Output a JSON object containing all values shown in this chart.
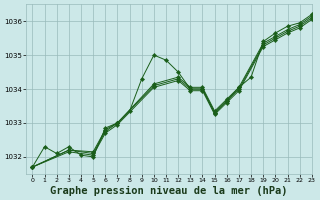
{
  "background_color": "#cce8e8",
  "grid_color": "#99bbbb",
  "line_color": "#1a5e1a",
  "marker_color": "#1a5e1a",
  "xlabel": "Graphe pression niveau de la mer (hPa)",
  "xlabel_fontsize": 7.5,
  "ylim": [
    1031.5,
    1036.5
  ],
  "xlim": [
    -0.5,
    23
  ],
  "yticks": [
    1032,
    1033,
    1034,
    1035,
    1036
  ],
  "xticks": [
    0,
    1,
    2,
    3,
    4,
    5,
    6,
    7,
    8,
    9,
    10,
    11,
    12,
    13,
    14,
    15,
    16,
    17,
    18,
    19,
    20,
    21,
    22,
    23
  ],
  "series": [
    {
      "x": [
        0,
        1,
        2,
        3,
        4,
        5,
        6,
        7,
        8,
        9,
        10,
        11,
        12,
        13,
        14,
        15,
        16,
        17,
        18,
        19,
        20,
        21,
        22,
        23
      ],
      "y": [
        1031.7,
        1032.3,
        1032.1,
        1032.3,
        1032.05,
        1032.0,
        1032.85,
        1033.0,
        1033.35,
        1034.3,
        1035.0,
        1034.85,
        1034.5,
        1034.0,
        1034.0,
        1033.3,
        1033.65,
        1034.05,
        1034.35,
        1035.4,
        1035.65,
        1035.85,
        1035.95,
        1036.2
      ]
    },
    {
      "x": [
        0,
        3,
        5,
        6,
        7,
        10,
        12,
        13,
        14,
        15,
        16,
        17,
        19,
        20,
        21,
        22,
        23
      ],
      "y": [
        1031.7,
        1032.2,
        1032.15,
        1032.8,
        1033.0,
        1034.15,
        1034.35,
        1034.05,
        1034.05,
        1033.35,
        1033.7,
        1034.05,
        1035.35,
        1035.55,
        1035.75,
        1035.9,
        1036.15
      ]
    },
    {
      "x": [
        0,
        3,
        5,
        6,
        7,
        10,
        12,
        13,
        14,
        15,
        16,
        17,
        19,
        20,
        21,
        22,
        23
      ],
      "y": [
        1031.7,
        1032.2,
        1032.1,
        1032.75,
        1033.0,
        1034.1,
        1034.3,
        1034.0,
        1034.0,
        1033.3,
        1033.65,
        1034.0,
        1035.3,
        1035.5,
        1035.7,
        1035.85,
        1036.1
      ]
    },
    {
      "x": [
        0,
        3,
        5,
        6,
        7,
        10,
        12,
        13,
        14,
        15,
        16,
        17,
        19,
        20,
        21,
        22,
        23
      ],
      "y": [
        1031.7,
        1032.15,
        1032.05,
        1032.7,
        1032.95,
        1034.05,
        1034.25,
        1033.95,
        1033.95,
        1033.25,
        1033.6,
        1033.95,
        1035.25,
        1035.45,
        1035.65,
        1035.8,
        1036.05
      ]
    }
  ]
}
